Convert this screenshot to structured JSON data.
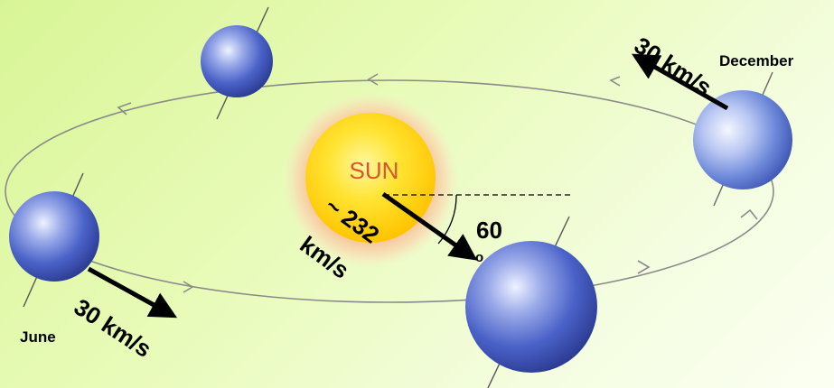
{
  "diagram": {
    "sun_label": "SUN",
    "months": {
      "june": "June",
      "december": "December"
    },
    "velocities": {
      "earth_june": "30 km/s",
      "earth_december": "30 km/s",
      "sun_line1": "~ 232",
      "sun_line2": "km/s"
    },
    "angle": {
      "value": "60",
      "unit": "o"
    },
    "colors": {
      "background": "#e6f9b0",
      "sun_core": "#ffd21a",
      "sun_halo": "#f2a678",
      "sun_text": "#d9542f",
      "earth": "#4a62c8",
      "orbit": "#8a8a8a",
      "arrow": "#000000"
    }
  }
}
